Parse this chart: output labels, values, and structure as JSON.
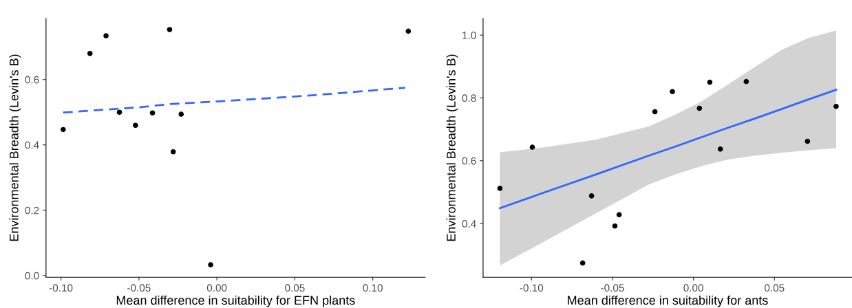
{
  "chart_data": [
    {
      "type": "scatter",
      "xlabel": "Mean difference in suitability for EFN plants",
      "ylabel": "Environmental Breadth (Levin's B)",
      "xlim": [
        -0.1096,
        0.1336
      ],
      "ylim": [
        -0.005,
        0.787
      ],
      "xticks": [
        {
          "value": -0.1,
          "label": "-0.10"
        },
        {
          "value": -0.05,
          "label": "-0.05"
        },
        {
          "value": 0,
          "label": "0.00"
        },
        {
          "value": 0.05,
          "label": "0.05"
        },
        {
          "value": 0.1,
          "label": "0.10"
        }
      ],
      "yticks": [
        {
          "value": 0,
          "label": "0.0"
        },
        0.2,
        0.4,
        0.6
      ],
      "grid": false,
      "legend": false,
      "series": [
        {
          "type": "scatter",
          "color": "#000000",
          "marker": "circle",
          "x": [
            -0.0986,
            -0.0814,
            -0.0711,
            -0.0625,
            -0.0522,
            -0.0413,
            -0.0303,
            -0.028,
            -0.0229,
            -0.004,
            0.1228
          ],
          "values": [
            0.447,
            0.68,
            0.734,
            0.5,
            0.46,
            0.498,
            0.753,
            0.379,
            0.494,
            0.033,
            0.748
          ]
        },
        {
          "type": "line",
          "color": "#3366ff",
          "line_style": "dashed",
          "x": [
            -0.0986,
            -0.05,
            -0.03,
            0.0,
            0.05,
            0.075,
            0.1208
          ],
          "values": [
            0.499,
            0.515,
            0.525,
            0.533,
            0.548,
            0.557,
            0.575
          ]
        }
      ]
    },
    {
      "type": "scatter",
      "xlabel": "Mean difference in suitability for ants",
      "ylabel": "Environmental Breadth (Levin's B)",
      "xlim": [
        -0.1299,
        0.0979
      ],
      "ylim": [
        0.229,
        1.053
      ],
      "xticks": [
        {
          "value": -0.1,
          "label": "-0.10"
        },
        {
          "value": -0.05,
          "label": "-0.05"
        },
        {
          "value": 0,
          "label": "0.00"
        },
        {
          "value": 0.05,
          "label": "0.05"
        }
      ],
      "yticks": [
        0.4,
        0.6,
        0.8,
        {
          "value": 1.0,
          "label": "1.0"
        }
      ],
      "grid": false,
      "legend": false,
      "series": [
        {
          "type": "line",
          "color": "#3366ff",
          "line_style": "solid",
          "x": [
            -0.1195,
            -0.0931,
            -0.0604,
            -0.0277,
            -0.0113,
            0.005,
            0.0214,
            0.0377,
            0.0541,
            0.0704,
            0.0881
          ],
          "values": [
            0.449,
            0.497,
            0.556,
            0.616,
            0.645,
            0.675,
            0.705,
            0.734,
            0.764,
            0.794,
            0.826
          ],
          "lower": [
            0.266,
            0.34,
            0.432,
            0.524,
            0.556,
            0.583,
            0.604,
            0.616,
            0.625,
            0.633,
            0.64
          ],
          "upper": [
            0.627,
            0.642,
            0.667,
            0.709,
            0.747,
            0.789,
            0.843,
            0.898,
            0.952,
            0.99,
            1.015
          ]
        },
        {
          "type": "scatter",
          "color": "#000000",
          "marker": "circle",
          "x": [
            -0.1195,
            -0.0995,
            -0.0684,
            -0.0629,
            -0.0485,
            -0.0459,
            -0.0238,
            -0.013,
            0.0037,
            0.0101,
            0.0166,
            0.0326,
            0.0704,
            0.0881
          ],
          "values": [
            0.512,
            0.643,
            0.274,
            0.488,
            0.392,
            0.428,
            0.756,
            0.82,
            0.767,
            0.85,
            0.637,
            0.852,
            0.662,
            0.773
          ]
        }
      ]
    }
  ]
}
